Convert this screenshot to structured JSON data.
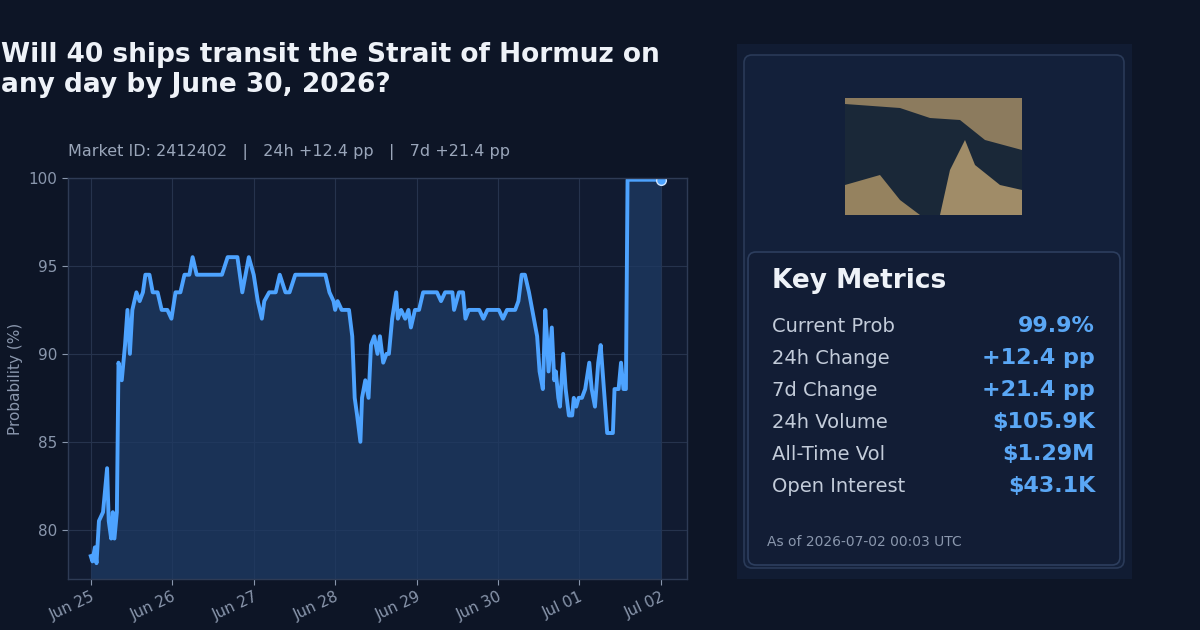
{
  "chart_data": {
    "type": "line",
    "title": "Will 40 ships transit the Strait of Hormuz on any day by June 30, 2026?",
    "subtitle": "Market ID: 2412402   |   24h +12.4 pp   |   7d +21.4 pp",
    "ylabel": "Probability (%)",
    "color": "#4da3ff",
    "grid": true,
    "x": [
      0,
      0.02,
      0.05,
      0.07,
      0.1,
      0.15,
      0.2,
      0.22,
      0.25,
      0.27,
      0.29,
      0.32,
      0.34,
      0.38,
      0.42,
      0.45,
      0.48,
      0.51,
      0.56,
      0.6,
      0.64,
      0.67,
      0.72,
      0.76,
      0.82,
      0.87,
      0.94,
      0.99,
      1.04,
      1.1,
      1.15,
      1.21,
      1.25,
      1.3,
      1.46,
      1.61,
      1.68,
      1.8,
      1.86,
      1.9,
      1.94,
      2.0,
      2.05,
      2.1,
      2.13,
      2.19,
      2.27,
      2.32,
      2.39,
      2.44,
      2.51,
      2.56,
      2.68,
      2.88,
      2.93,
      2.98,
      3.0,
      3.03,
      3.08,
      3.17,
      3.21,
      3.24,
      3.27,
      3.31,
      3.33,
      3.37,
      3.41,
      3.44,
      3.48,
      3.52,
      3.55,
      3.59,
      3.63,
      3.66,
      3.7,
      3.75,
      3.77,
      3.81,
      3.86,
      3.9,
      3.93,
      3.98,
      4.03,
      4.08,
      4.15,
      4.25,
      4.3,
      4.35,
      4.4,
      4.44,
      4.46,
      4.52,
      4.57,
      4.6,
      4.64,
      4.77,
      4.82,
      4.87,
      5.01,
      5.06,
      5.11,
      5.21,
      5.25,
      5.29,
      5.33,
      5.38,
      5.42,
      5.48,
      5.51,
      5.55,
      5.58,
      5.6,
      5.62,
      5.66,
      5.69,
      5.71,
      5.74,
      5.76,
      5.8,
      5.83,
      5.87,
      5.91,
      5.93,
      5.96,
      5.99,
      6.03,
      6.07,
      6.12,
      6.15,
      6.19,
      6.23,
      6.26,
      6.3,
      6.34,
      6.41,
      6.43,
      6.48,
      6.51,
      6.54,
      6.57,
      6.59,
      7.0
    ],
    "values": [
      78.5,
      78.2,
      79,
      78.1,
      80.5,
      81,
      83.5,
      80.5,
      79.5,
      81,
      79.5,
      81,
      89.5,
      88.5,
      90.5,
      92.5,
      90,
      92.5,
      93.5,
      93,
      93.5,
      94.5,
      94.5,
      93.5,
      93.5,
      92.5,
      92.5,
      92,
      93.5,
      93.5,
      94.5,
      94.5,
      95.5,
      94.5,
      94.5,
      94.5,
      95.5,
      95.5,
      93.5,
      94.5,
      95.5,
      94.5,
      93,
      92,
      93,
      93.5,
      93.5,
      94.5,
      93.5,
      93.5,
      94.5,
      94.5,
      94.5,
      94.5,
      93.5,
      93,
      92.5,
      93,
      92.5,
      92.5,
      91,
      87.5,
      86.5,
      85,
      87.5,
      88.5,
      87.5,
      90.5,
      91,
      90,
      91,
      89.5,
      90,
      90,
      92,
      93.5,
      92,
      92.5,
      92,
      92.5,
      91.5,
      92.5,
      92.5,
      93.5,
      93.5,
      93.5,
      93,
      93.5,
      93.5,
      93.5,
      92.5,
      93.5,
      93.5,
      92,
      92.5,
      92.5,
      92,
      92.5,
      92.5,
      92,
      92.5,
      92.5,
      93,
      94.5,
      94.5,
      93.5,
      92.5,
      91,
      89,
      88,
      92.5,
      91,
      89,
      91.5,
      88.5,
      89,
      87.5,
      87,
      90,
      88,
      86.5,
      86.5,
      87.5,
      87,
      87.5,
      87.5,
      88,
      89.5,
      88,
      87,
      89.5,
      90.5,
      88,
      85.5,
      85.5,
      88,
      88,
      89.5,
      88,
      88,
      99.9,
      99.9
    ],
    "xlim": [
      -0.28,
      7.32
    ],
    "xticks": [
      {
        "value": 0,
        "label": "Jun 25"
      },
      {
        "value": 1,
        "label": "Jun 26"
      },
      {
        "value": 2,
        "label": "Jun 27"
      },
      {
        "value": 3,
        "label": "Jun 28"
      },
      {
        "value": 4,
        "label": "Jun 29"
      },
      {
        "value": 5,
        "label": "Jun 30"
      },
      {
        "value": 6,
        "label": "Jul 01"
      },
      {
        "value": 7,
        "label": "Jul 02"
      }
    ],
    "ylim": [
      77.2,
      100
    ],
    "yticks": [
      80,
      85,
      90,
      95,
      100
    ]
  },
  "panel": {
    "title": "Key Metrics",
    "rows": [
      {
        "label": "Current Prob",
        "value": "99.9%"
      },
      {
        "label": "24h Change",
        "value": "+12.4 pp"
      },
      {
        "label": "7d Change",
        "value": "+21.4 pp"
      },
      {
        "label": "24h Volume",
        "value": "$105.9K"
      },
      {
        "label": "All-Time Vol",
        "value": "$1.29M"
      },
      {
        "label": "Open Interest",
        "value": "$43.1K"
      }
    ],
    "footnote": "As of 2026-07-02 00:03 UTC"
  }
}
